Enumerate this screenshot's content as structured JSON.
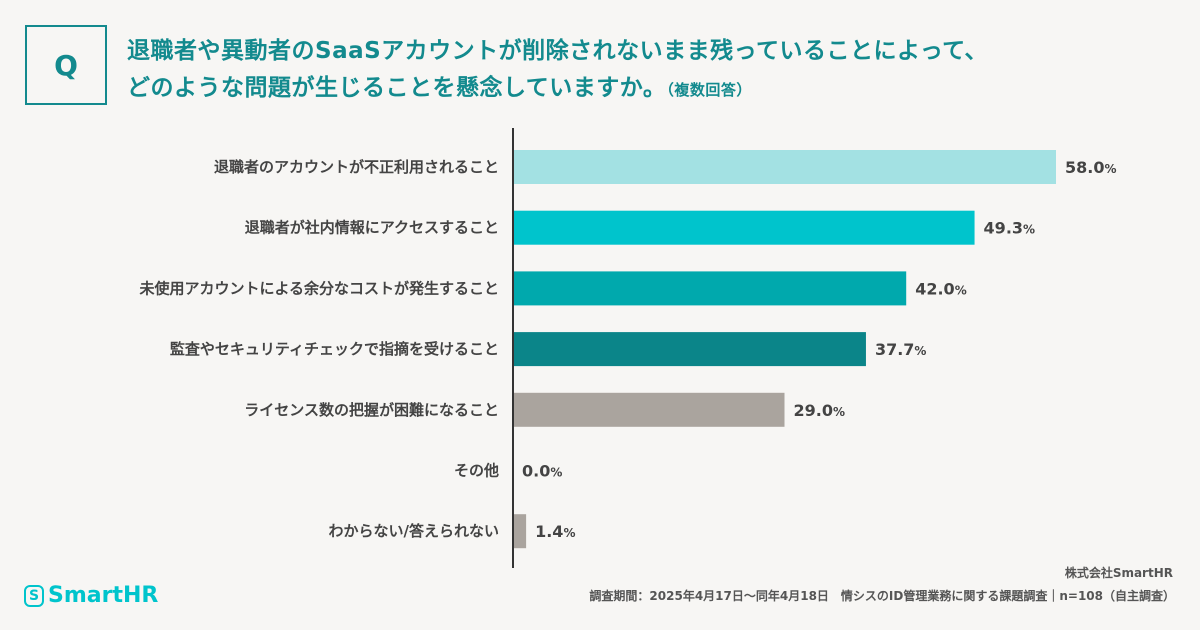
{
  "question_mark": "Q",
  "title_line1": "退職者や異動者のSaaSアカウントが削除されないまま残っていることによって、",
  "title_line2": "どのような問題が生じることを懸念していますか。",
  "title_note": "（複数回答）",
  "chart_data": {
    "type": "bar",
    "orientation": "horizontal",
    "categories": [
      "退職者のアカウントが不正利用されること",
      "退職者が社内情報にアクセスすること",
      "未使用アカウントによる余分なコストが発生すること",
      "監査やセキュリティチェックで指摘を受けること",
      "ライセンス数の把握が困難になること",
      "その他",
      "わからない/答えられない"
    ],
    "values": [
      58.0,
      49.3,
      42.0,
      37.7,
      29.0,
      0.0,
      1.4
    ],
    "value_labels": [
      "58.0",
      "49.3",
      "42.0",
      "37.7",
      "29.0",
      "0.0",
      "1.4"
    ],
    "unit": "%",
    "colors": [
      "#a3e1e3",
      "#00c4cc",
      "#00a9ad",
      "#0b8589",
      "#aaa49e",
      "#aaa49e",
      "#aaa49e"
    ],
    "xlim": [
      0,
      58
    ],
    "grid": false,
    "legend": "none"
  },
  "footer": {
    "company": "株式会社SmartHR",
    "note": "調査期間：2025年4月17日〜同年4月18日　情シスのID管理業務に関する課題調査｜n=108（自主調査）",
    "logo_text": "SmartHR",
    "logo_mark": "S"
  }
}
